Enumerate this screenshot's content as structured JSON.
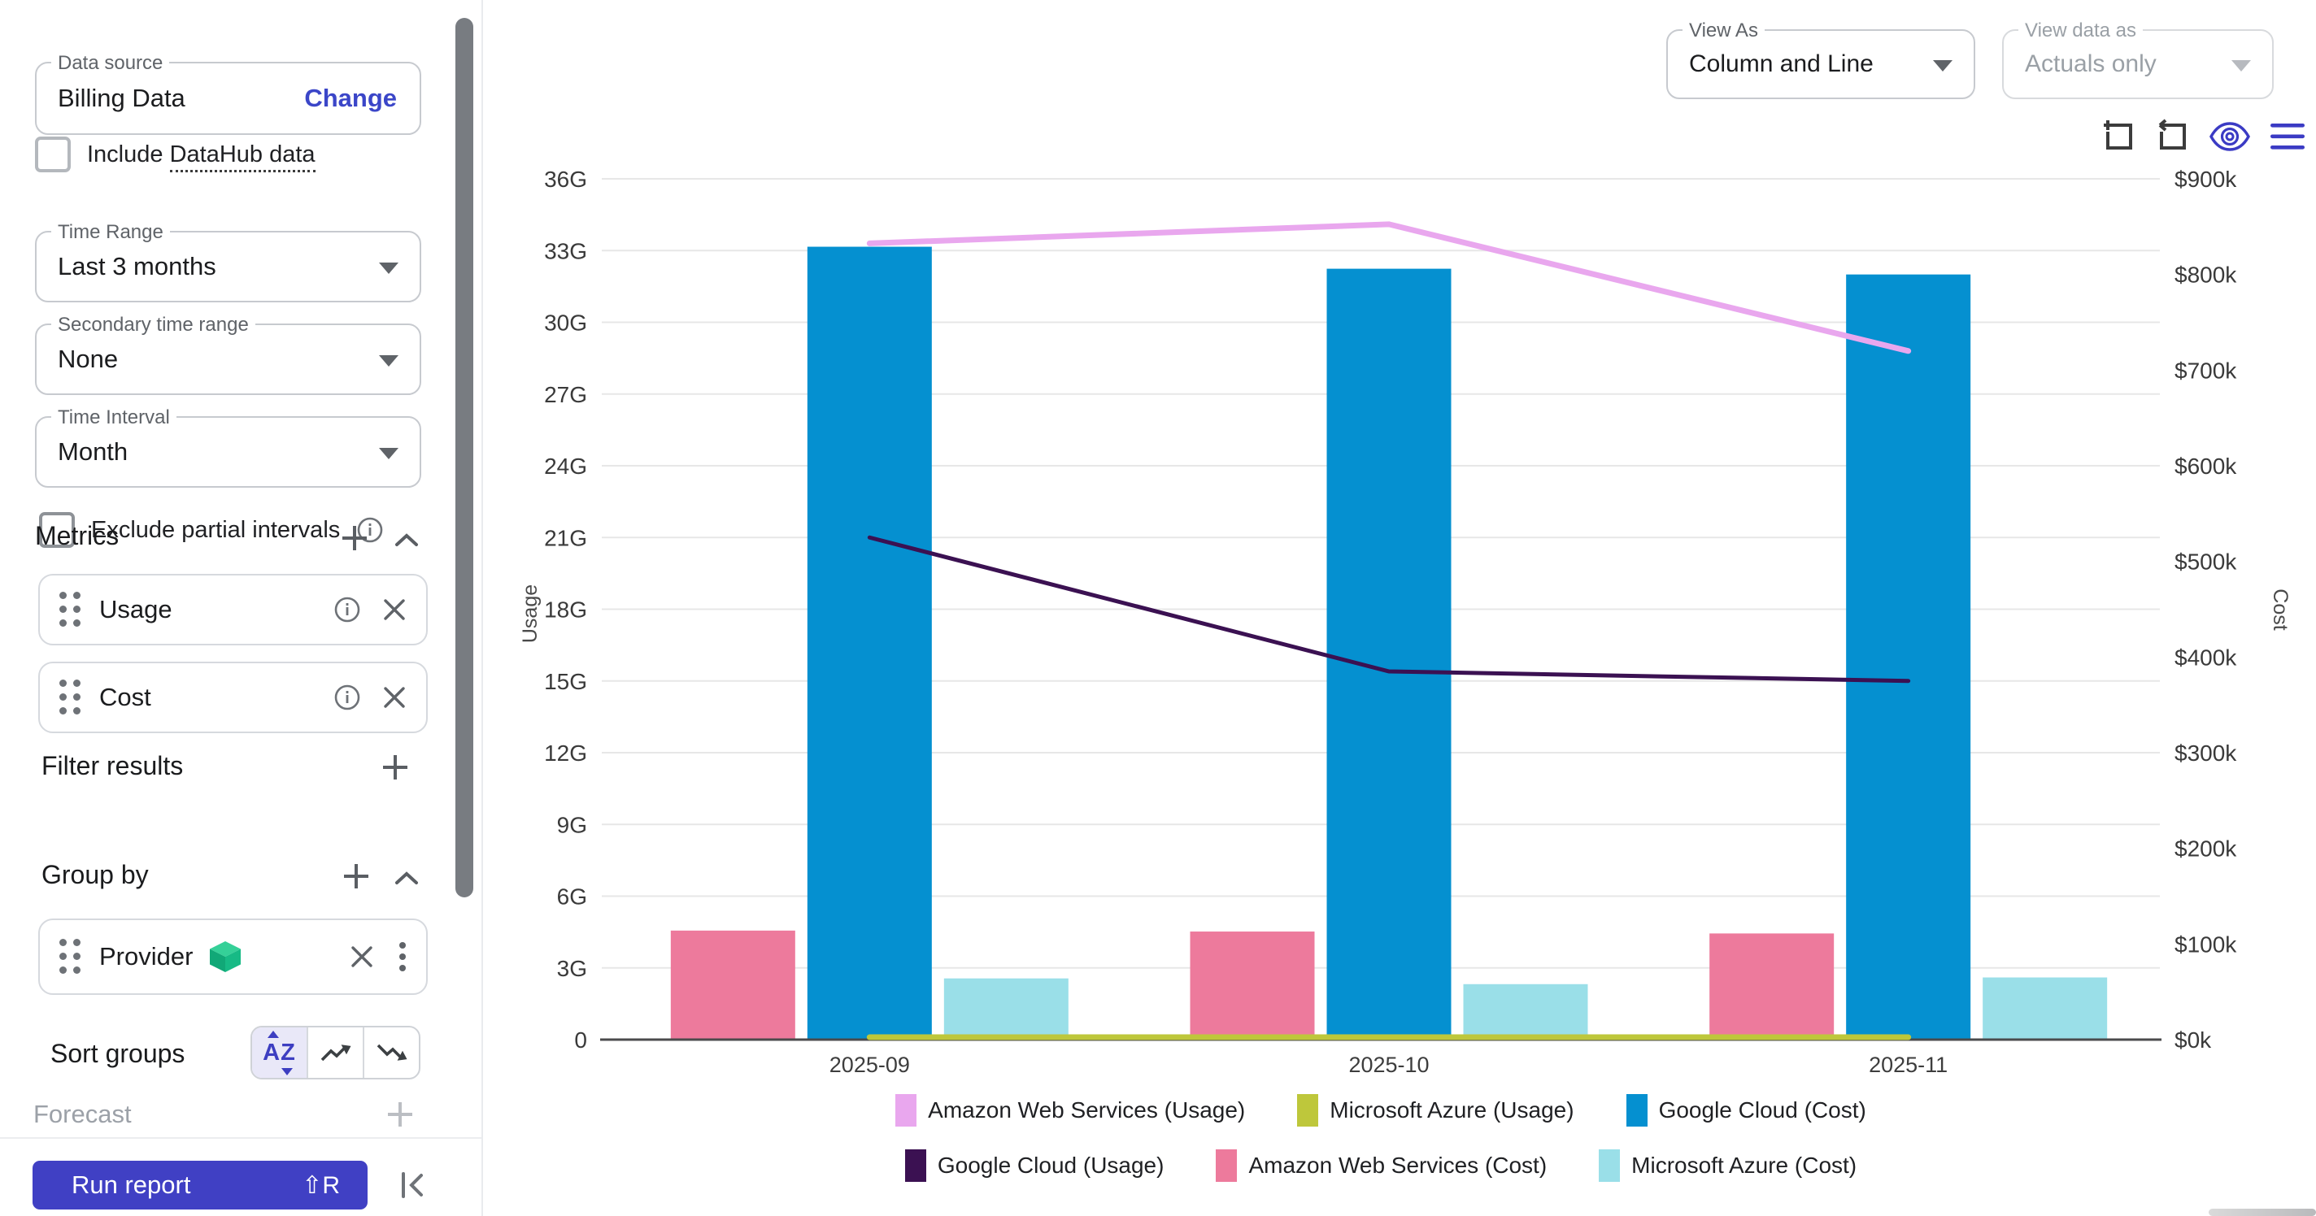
{
  "sidebar": {
    "data_source": {
      "label": "Data source",
      "value": "Billing Data",
      "action": "Change"
    },
    "include_datahub": {
      "prefix": "Include",
      "link": "DataHub data"
    },
    "time_range": {
      "label": "Time Range",
      "value": "Last 3 months"
    },
    "secondary_time_range": {
      "label": "Secondary time range",
      "value": "None"
    },
    "time_interval": {
      "label": "Time Interval",
      "value": "Month"
    },
    "exclude_partial": {
      "label": "Exclude partial intervals"
    },
    "metrics": {
      "title": "Metrics",
      "items": [
        {
          "label": "Usage"
        },
        {
          "label": "Cost"
        }
      ]
    },
    "filter_results": {
      "title": "Filter results"
    },
    "group_by": {
      "title": "Group by",
      "items": [
        {
          "label": "Provider"
        }
      ]
    },
    "sort_groups": {
      "label": "Sort groups",
      "options": [
        "alphabetical",
        "trend-up",
        "trend-down"
      ],
      "selected": "alphabetical"
    },
    "forecast": {
      "title": "Forecast"
    },
    "run_report": {
      "label": "Run report",
      "shortcut": "⇧R"
    }
  },
  "topbar": {
    "view_as": {
      "label": "View As",
      "value": "Column and Line"
    },
    "view_data_as": {
      "label": "View data as",
      "value": "Actuals only",
      "disabled": true
    }
  },
  "chart_data": {
    "type": "column+line",
    "categories": [
      "2025-09",
      "2025-10",
      "2025-11"
    ],
    "axes": {
      "left": {
        "title": "Usage",
        "min": 0,
        "max": 36,
        "tick_step": 3,
        "suffix": "G",
        "prefix": ""
      },
      "right": {
        "title": "Cost",
        "min": 0,
        "max": 900,
        "tick_step": 100,
        "prefix": "$",
        "suffix": "k"
      }
    },
    "grid": true,
    "legend_position": "bottom",
    "series": [
      {
        "name": "Amazon Web Services (Usage)",
        "type": "line",
        "axis": "left",
        "color": "#E9A7EE",
        "line_width": 7,
        "values": [
          33.3,
          34.1,
          28.8
        ]
      },
      {
        "name": "Microsoft Azure (Usage)",
        "type": "line",
        "axis": "left",
        "color": "#BEC73B",
        "line_width": 7,
        "values": [
          0.1,
          0.1,
          0.1
        ]
      },
      {
        "name": "Google Cloud (Cost)",
        "type": "column",
        "axis": "right",
        "color": "#0590D0",
        "slot": 1,
        "values": [
          829,
          806,
          800
        ]
      },
      {
        "name": "Google Cloud (Usage)",
        "type": "line",
        "axis": "left",
        "color": "#3B1152",
        "line_width": 5,
        "values": [
          21.0,
          15.4,
          15.0
        ]
      },
      {
        "name": "Amazon Web Services (Cost)",
        "type": "column",
        "axis": "right",
        "color": "#ED7A9C",
        "slot": 0,
        "values": [
          114,
          113,
          111
        ]
      },
      {
        "name": "Microsoft Azure (Cost)",
        "type": "column",
        "axis": "right",
        "color": "#9ADFE8",
        "slot": 2,
        "values": [
          64,
          58,
          65
        ]
      }
    ],
    "legend_rows": [
      [
        0,
        1,
        2
      ],
      [
        3,
        4,
        5
      ]
    ]
  }
}
